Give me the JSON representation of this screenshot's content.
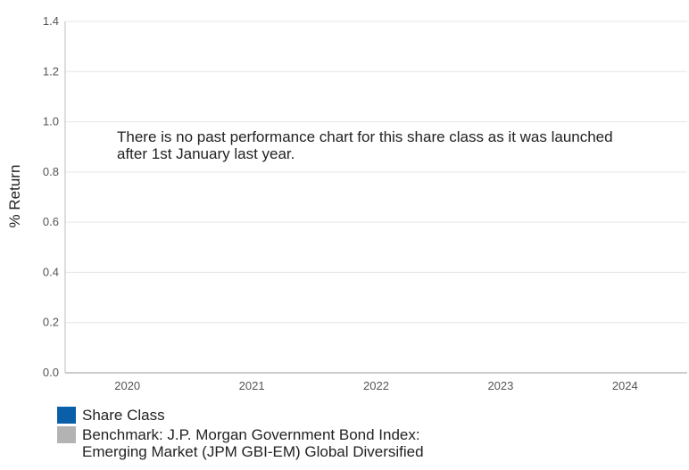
{
  "chart_data": {
    "type": "bar",
    "categories": [
      "2020",
      "2021",
      "2022",
      "2023",
      "2024"
    ],
    "series": [
      {
        "name": "Share Class",
        "color": "#0a5fa8",
        "values": [
          null,
          null,
          null,
          null,
          null
        ]
      },
      {
        "name": "Benchmark: J.P. Morgan Government Bond Index: Emerging Market (JPM GBI-EM) Global Diversified",
        "color": "#b3b3b3",
        "values": [
          null,
          null,
          null,
          null,
          null
        ]
      }
    ],
    "ylabel": "% Return",
    "ylim": [
      0,
      1.4
    ],
    "yticks": [
      "0.0",
      "0.2",
      "0.4",
      "0.6",
      "0.8",
      "1.0",
      "1.2",
      "1.4"
    ],
    "grid": true,
    "legend_placement": "bottom-left",
    "annotation": "There is no past performance chart for this share class as it was launched after 1st January last year."
  },
  "legend": {
    "share_class": "Share Class",
    "benchmark_line1": "Benchmark: J.P. Morgan Government Bond Index:",
    "benchmark_line2": "Emerging Market (JPM GBI-EM) Global Diversified"
  }
}
